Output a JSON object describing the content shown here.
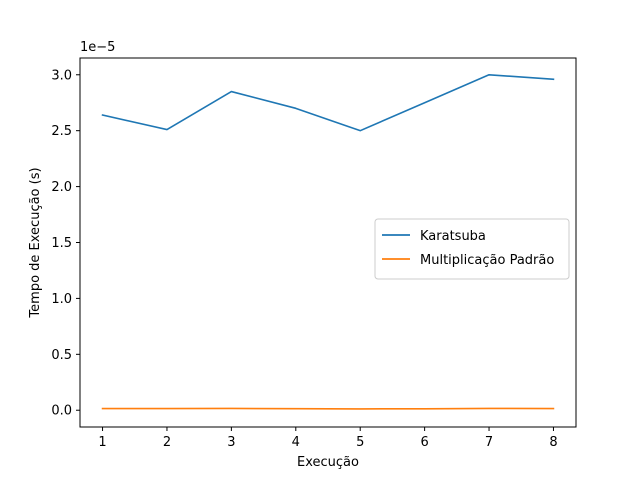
{
  "chart_data": {
    "type": "line",
    "title": "",
    "xlabel": "Execução",
    "ylabel": "Tempo de Execução (s)",
    "y_offset_label": "1e−5",
    "y_scale_factor": 1e-05,
    "x": [
      1,
      2,
      3,
      4,
      5,
      6,
      7,
      8
    ],
    "xlim": [
      0.65,
      8.35
    ],
    "ylim": [
      -0.15,
      3.15
    ],
    "x_ticks": [
      1,
      2,
      3,
      4,
      5,
      6,
      7,
      8
    ],
    "y_ticks": [
      0.0,
      0.5,
      1.0,
      1.5,
      2.0,
      2.5,
      3.0
    ],
    "y_tick_labels": [
      "0.0",
      "0.5",
      "1.0",
      "1.5",
      "2.0",
      "2.5",
      "3.0"
    ],
    "grid": false,
    "legend_position": "center-right",
    "series": [
      {
        "name": "Karatsuba",
        "color": "#1f77b4",
        "values": [
          2.64,
          2.51,
          2.85,
          2.7,
          2.5,
          2.75,
          3.0,
          2.96
        ]
      },
      {
        "name": "Multiplicação Padrão",
        "color": "#ff7f0e",
        "values": [
          0.015,
          0.015,
          0.016,
          0.014,
          0.012,
          0.013,
          0.016,
          0.015
        ]
      }
    ]
  }
}
